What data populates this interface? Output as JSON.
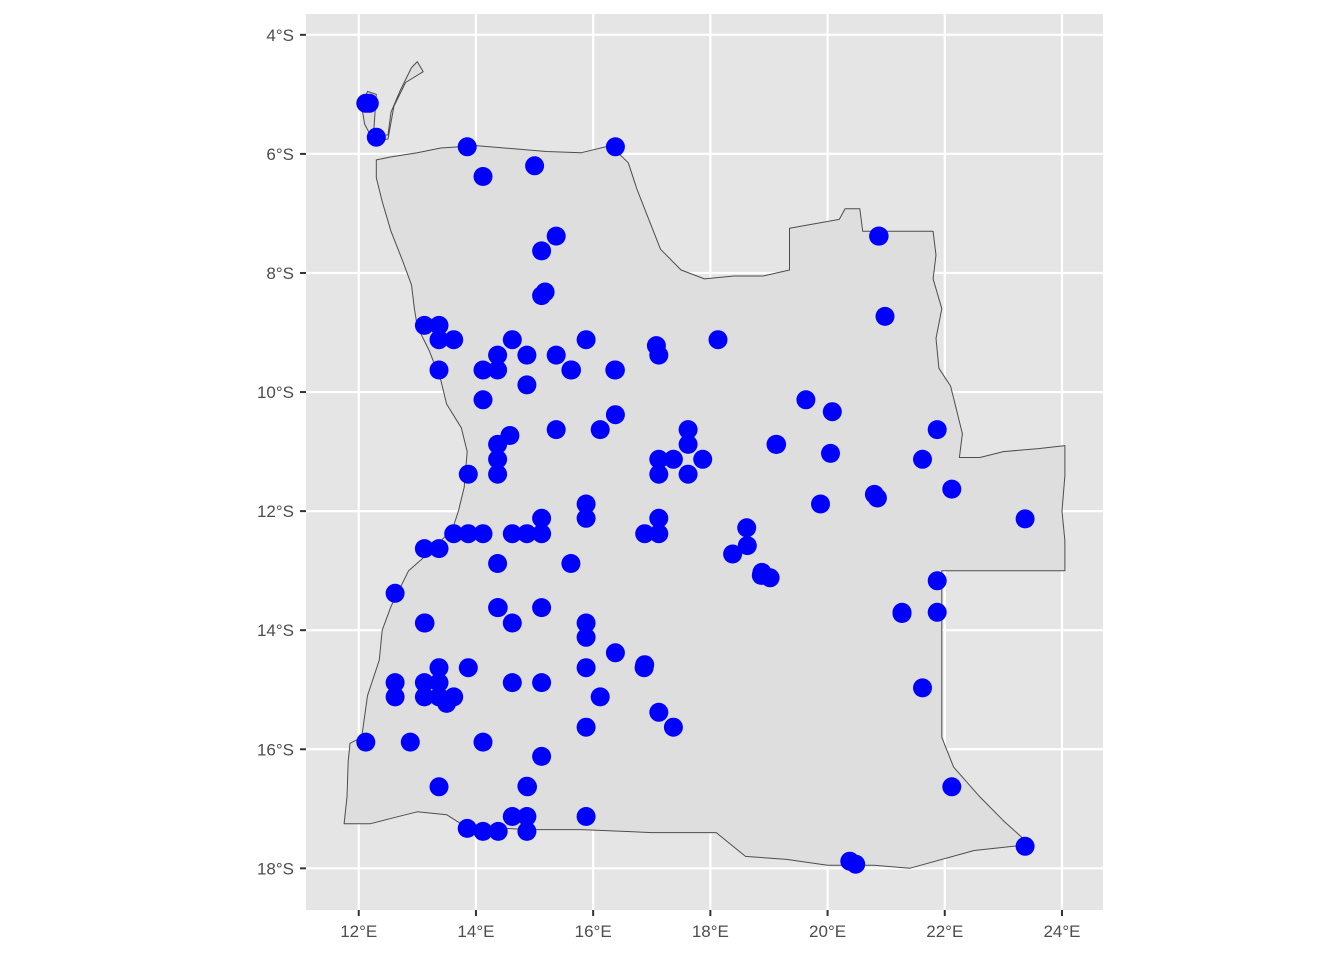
{
  "chart_data": {
    "type": "scatter",
    "title": "",
    "xlabel": "",
    "ylabel": "",
    "xlim": [
      11.1,
      24.7
    ],
    "ylim": [
      -18.7,
      -3.65
    ],
    "grid": true,
    "x_ticks": [
      {
        "value": 12,
        "label": "12°E"
      },
      {
        "value": 14,
        "label": "14°E"
      },
      {
        "value": 16,
        "label": "16°E"
      },
      {
        "value": 18,
        "label": "18°E"
      },
      {
        "value": 20,
        "label": "20°E"
      },
      {
        "value": 22,
        "label": "22°E"
      },
      {
        "value": 24,
        "label": "24°E"
      }
    ],
    "y_ticks": [
      {
        "value": -4,
        "label": "4°S"
      },
      {
        "value": -6,
        "label": "6°S"
      },
      {
        "value": -8,
        "label": "8°S"
      },
      {
        "value": -10,
        "label": "10°S"
      },
      {
        "value": -12,
        "label": "12°S"
      },
      {
        "value": -14,
        "label": "14°S"
      },
      {
        "value": -16,
        "label": "16°S"
      },
      {
        "value": -18,
        "label": "18°S"
      }
    ],
    "colors": {
      "panel": "#e5e5e5",
      "grid": "#ffffff",
      "country_fill": "#dedede",
      "country_border": "#4d4d4d",
      "point": "#0000ff",
      "tick_text": "#4d4d4d",
      "tick_mark": "#333333"
    },
    "country_outline": [
      [
        12.3,
        -6.1
      ],
      [
        12.55,
        -6.05
      ],
      [
        13.0,
        -5.98
      ],
      [
        13.4,
        -5.9
      ],
      [
        14.0,
        -5.86
      ],
      [
        14.6,
        -5.91
      ],
      [
        15.2,
        -5.96
      ],
      [
        15.8,
        -5.98
      ],
      [
        16.3,
        -5.86
      ],
      [
        16.6,
        -6.15
      ],
      [
        16.75,
        -6.6
      ],
      [
        16.95,
        -7.1
      ],
      [
        17.15,
        -7.6
      ],
      [
        17.5,
        -7.95
      ],
      [
        17.9,
        -8.1
      ],
      [
        18.4,
        -8.05
      ],
      [
        18.9,
        -8.05
      ],
      [
        19.35,
        -7.95
      ],
      [
        19.35,
        -7.25
      ],
      [
        20.2,
        -7.1
      ],
      [
        20.3,
        -6.92
      ],
      [
        20.55,
        -6.92
      ],
      [
        20.6,
        -7.3
      ],
      [
        21.8,
        -7.3
      ],
      [
        21.85,
        -7.7
      ],
      [
        21.8,
        -8.1
      ],
      [
        21.95,
        -8.6
      ],
      [
        21.85,
        -9.1
      ],
      [
        21.9,
        -9.6
      ],
      [
        22.1,
        -9.9
      ],
      [
        22.2,
        -10.3
      ],
      [
        22.3,
        -10.7
      ],
      [
        22.25,
        -11.1
      ],
      [
        22.6,
        -11.1
      ],
      [
        23.0,
        -11.0
      ],
      [
        23.6,
        -10.95
      ],
      [
        24.05,
        -10.9
      ],
      [
        24.05,
        -11.4
      ],
      [
        24.0,
        -12.0
      ],
      [
        24.05,
        -12.5
      ],
      [
        24.05,
        -13.0
      ],
      [
        21.95,
        -13.0
      ],
      [
        21.95,
        -14.0
      ],
      [
        21.95,
        -15.0
      ],
      [
        21.95,
        -15.8
      ],
      [
        22.15,
        -16.3
      ],
      [
        22.6,
        -16.8
      ],
      [
        23.0,
        -17.2
      ],
      [
        23.45,
        -17.6
      ],
      [
        22.5,
        -17.7
      ],
      [
        21.4,
        -18.0
      ],
      [
        20.8,
        -17.95
      ],
      [
        20.0,
        -17.95
      ],
      [
        19.3,
        -17.85
      ],
      [
        18.6,
        -17.8
      ],
      [
        18.1,
        -17.4
      ],
      [
        17.0,
        -17.4
      ],
      [
        15.8,
        -17.35
      ],
      [
        14.9,
        -17.35
      ],
      [
        14.3,
        -17.32
      ],
      [
        14.2,
        -17.4
      ],
      [
        13.9,
        -17.35
      ],
      [
        13.5,
        -17.1
      ],
      [
        13.0,
        -17.05
      ],
      [
        12.6,
        -17.15
      ],
      [
        12.2,
        -17.25
      ],
      [
        11.75,
        -17.25
      ],
      [
        11.8,
        -16.8
      ],
      [
        11.82,
        -16.2
      ],
      [
        11.85,
        -15.9
      ],
      [
        12.05,
        -15.8
      ],
      [
        12.15,
        -15.1
      ],
      [
        12.35,
        -14.5
      ],
      [
        12.4,
        -14.0
      ],
      [
        12.55,
        -13.6
      ],
      [
        12.85,
        -13.0
      ],
      [
        13.2,
        -12.7
      ],
      [
        13.6,
        -12.3
      ],
      [
        13.7,
        -12.0
      ],
      [
        13.8,
        -11.6
      ],
      [
        13.85,
        -11.0
      ],
      [
        13.75,
        -10.6
      ],
      [
        13.5,
        -10.2
      ],
      [
        13.4,
        -9.8
      ],
      [
        13.2,
        -9.3
      ],
      [
        13.0,
        -8.9
      ],
      [
        12.95,
        -8.6
      ],
      [
        12.9,
        -8.2
      ],
      [
        12.75,
        -7.8
      ],
      [
        12.55,
        -7.3
      ],
      [
        12.4,
        -6.8
      ],
      [
        12.3,
        -6.4
      ],
      [
        12.3,
        -6.1
      ]
    ],
    "cabinda_outline": [
      [
        12.25,
        -5.7
      ],
      [
        12.5,
        -5.68
      ],
      [
        12.55,
        -5.3
      ],
      [
        12.7,
        -4.95
      ],
      [
        12.9,
        -4.55
      ],
      [
        13.0,
        -4.45
      ],
      [
        13.1,
        -4.62
      ],
      [
        12.8,
        -4.8
      ],
      [
        12.6,
        -5.2
      ],
      [
        12.5,
        -5.75
      ],
      [
        12.25,
        -5.78
      ],
      [
        12.1,
        -5.5
      ],
      [
        12.05,
        -5.2
      ],
      [
        12.15,
        -4.95
      ],
      [
        12.3,
        -5.0
      ],
      [
        12.25,
        -5.7
      ]
    ],
    "series": [
      {
        "name": "",
        "points": [
          [
            12.12,
            -5.15
          ],
          [
            12.18,
            -5.15
          ],
          [
            12.3,
            -5.72
          ],
          [
            13.85,
            -5.88
          ],
          [
            14.12,
            -6.38
          ],
          [
            15.0,
            -6.2
          ],
          [
            16.38,
            -5.88
          ],
          [
            15.37,
            -7.38
          ],
          [
            15.12,
            -7.63
          ],
          [
            15.18,
            -8.32
          ],
          [
            15.12,
            -8.38
          ],
          [
            20.88,
            -7.38
          ],
          [
            20.87,
            -7.38
          ],
          [
            20.98,
            -8.73
          ],
          [
            13.12,
            -8.88
          ],
          [
            13.37,
            -8.88
          ],
          [
            13.37,
            -9.12
          ],
          [
            13.62,
            -9.12
          ],
          [
            13.37,
            -9.63
          ],
          [
            14.12,
            -9.63
          ],
          [
            14.37,
            -9.38
          ],
          [
            14.37,
            -9.63
          ],
          [
            14.62,
            -9.12
          ],
          [
            14.87,
            -9.38
          ],
          [
            14.87,
            -9.88
          ],
          [
            14.12,
            -10.13
          ],
          [
            15.37,
            -9.38
          ],
          [
            15.62,
            -9.63
          ],
          [
            15.63,
            -9.63
          ],
          [
            15.88,
            -9.12
          ],
          [
            16.38,
            -9.63
          ],
          [
            16.37,
            -9.63
          ],
          [
            17.08,
            -9.22
          ],
          [
            17.12,
            -9.38
          ],
          [
            18.13,
            -9.12
          ],
          [
            16.38,
            -10.38
          ],
          [
            16.12,
            -10.63
          ],
          [
            15.37,
            -10.63
          ],
          [
            14.58,
            -10.73
          ],
          [
            14.37,
            -10.88
          ],
          [
            14.37,
            -11.13
          ],
          [
            14.37,
            -11.38
          ],
          [
            13.87,
            -11.38
          ],
          [
            17.12,
            -11.13
          ],
          [
            17.12,
            -11.38
          ],
          [
            17.37,
            -11.13
          ],
          [
            17.62,
            -10.63
          ],
          [
            17.62,
            -10.88
          ],
          [
            17.62,
            -11.38
          ],
          [
            17.87,
            -11.13
          ],
          [
            19.13,
            -10.88
          ],
          [
            19.12,
            -10.88
          ],
          [
            19.63,
            -10.13
          ],
          [
            20.08,
            -10.33
          ],
          [
            20.05,
            -11.03
          ],
          [
            19.88,
            -11.88
          ],
          [
            20.8,
            -11.72
          ],
          [
            20.85,
            -11.78
          ],
          [
            21.62,
            -11.13
          ],
          [
            21.87,
            -10.63
          ],
          [
            22.12,
            -11.63
          ],
          [
            23.37,
            -12.13
          ],
          [
            13.12,
            -12.63
          ],
          [
            13.37,
            -12.63
          ],
          [
            13.62,
            -12.38
          ],
          [
            13.87,
            -12.38
          ],
          [
            14.12,
            -12.38
          ],
          [
            14.62,
            -12.38
          ],
          [
            14.87,
            -12.38
          ],
          [
            15.12,
            -12.12
          ],
          [
            15.12,
            -12.38
          ],
          [
            15.88,
            -11.88
          ],
          [
            15.88,
            -12.12
          ],
          [
            17.12,
            -12.12
          ],
          [
            17.12,
            -12.38
          ],
          [
            16.88,
            -12.38
          ],
          [
            18.62,
            -12.28
          ],
          [
            18.63,
            -12.58
          ],
          [
            18.38,
            -12.72
          ],
          [
            18.88,
            -13.03
          ],
          [
            18.87,
            -13.08
          ],
          [
            19.02,
            -13.12
          ],
          [
            14.37,
            -12.88
          ],
          [
            15.62,
            -12.88
          ],
          [
            12.62,
            -13.38
          ],
          [
            13.12,
            -13.88
          ],
          [
            13.13,
            -13.88
          ],
          [
            14.37,
            -13.62
          ],
          [
            14.38,
            -13.62
          ],
          [
            14.62,
            -13.88
          ],
          [
            15.12,
            -13.62
          ],
          [
            15.88,
            -13.88
          ],
          [
            15.88,
            -14.12
          ],
          [
            16.38,
            -14.38
          ],
          [
            15.88,
            -14.63
          ],
          [
            16.88,
            -14.58
          ],
          [
            16.87,
            -14.63
          ],
          [
            21.87,
            -13.17
          ],
          [
            21.27,
            -13.7
          ],
          [
            21.27,
            -13.72
          ],
          [
            21.87,
            -13.7
          ],
          [
            21.62,
            -14.97
          ],
          [
            12.62,
            -14.88
          ],
          [
            12.62,
            -15.12
          ],
          [
            13.12,
            -14.88
          ],
          [
            13.12,
            -15.12
          ],
          [
            13.37,
            -14.63
          ],
          [
            13.37,
            -14.88
          ],
          [
            13.37,
            -15.12
          ],
          [
            13.5,
            -15.23
          ],
          [
            13.62,
            -15.12
          ],
          [
            13.87,
            -14.63
          ],
          [
            14.62,
            -14.88
          ],
          [
            15.12,
            -14.88
          ],
          [
            16.12,
            -15.12
          ],
          [
            17.12,
            -15.38
          ],
          [
            17.37,
            -15.63
          ],
          [
            15.88,
            -15.63
          ],
          [
            12.12,
            -15.88
          ],
          [
            12.88,
            -15.88
          ],
          [
            14.12,
            -15.88
          ],
          [
            15.12,
            -16.12
          ],
          [
            13.37,
            -16.63
          ],
          [
            14.87,
            -16.62
          ],
          [
            14.88,
            -16.63
          ],
          [
            13.85,
            -17.33
          ],
          [
            14.12,
            -17.38
          ],
          [
            14.38,
            -17.38
          ],
          [
            14.62,
            -17.13
          ],
          [
            14.87,
            -17.13
          ],
          [
            14.87,
            -17.38
          ],
          [
            15.88,
            -17.13
          ],
          [
            20.38,
            -17.88
          ],
          [
            20.48,
            -17.93
          ],
          [
            22.12,
            -16.63
          ],
          [
            23.37,
            -17.63
          ]
        ]
      }
    ]
  }
}
